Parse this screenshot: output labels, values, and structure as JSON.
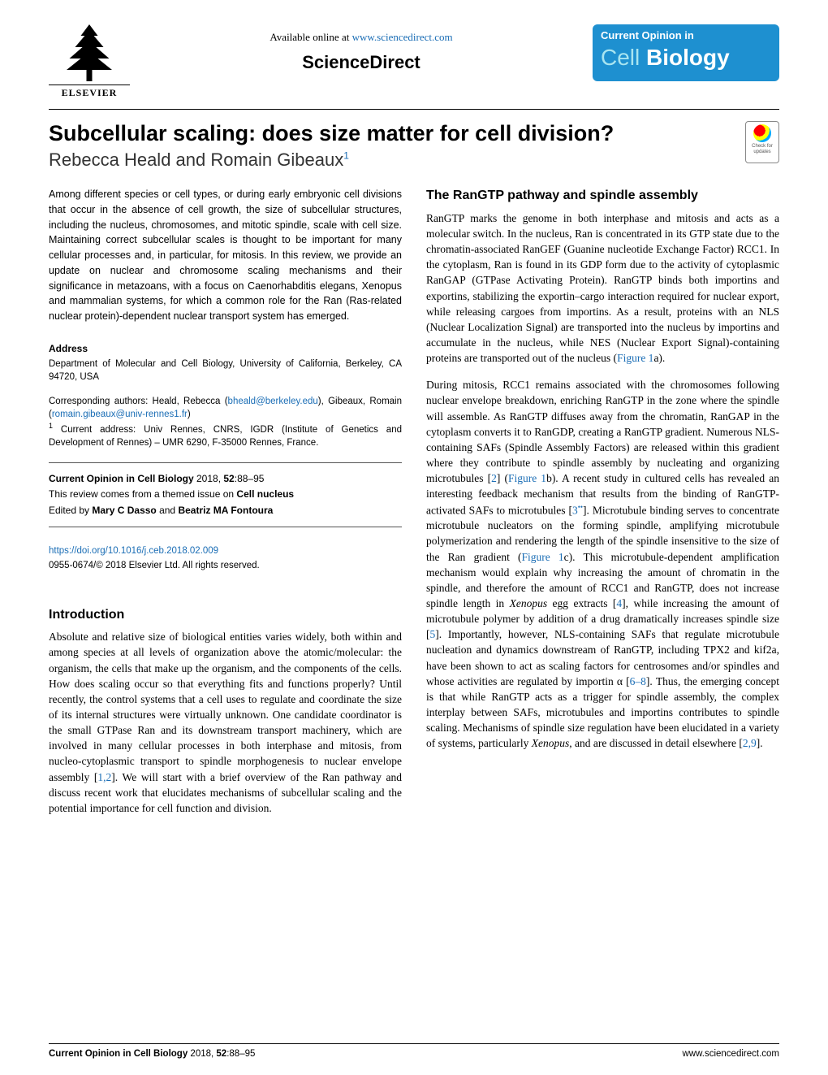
{
  "header": {
    "elsevier_label": "ELSEVIER",
    "available_online_prefix": "Available online at ",
    "available_online_url": "www.sciencedirect.com",
    "sciencedirect": "ScienceDirect",
    "journal_top": "Current Opinion in",
    "journal_cell": "Cell",
    "journal_biology": "Biology"
  },
  "title": "Subcellular scaling: does size matter for cell division?",
  "authors": "Rebecca Heald and Romain Gibeaux",
  "author_sup": "1",
  "crossmark": {
    "line1": "Check for",
    "line2": "updates"
  },
  "abstract": "Among different species or cell types, or during early embryonic cell divisions that occur in the absence of cell growth, the size of subcellular structures, including the nucleus, chromosomes, and mitotic spindle, scale with cell size. Maintaining correct subcellular scales is thought to be important for many cellular processes and, in particular, for mitosis. In this review, we provide an update on nuclear and chromosome scaling mechanisms and their significance in metazoans, with a focus on Caenorhabditis elegans, Xenopus and mammalian systems, for which a common role for the Ran (Ras-related nuclear protein)-dependent nuclear transport system has emerged.",
  "address": {
    "head": "Address",
    "body": "Department of Molecular and Cell Biology, University of California, Berkeley, CA 94720, USA"
  },
  "corresponding": {
    "prefix": "Corresponding authors: Heald, Rebecca (",
    "email1": "bheald@berkeley.edu",
    "mid": "), Gibeaux, Romain (",
    "email2": "romain.gibeaux@univ-rennes1.fr",
    "suffix": ")",
    "note_sup": "1",
    "note": " Current address: Univ Rennes, CNRS, IGDR (Institute of Genetics and Development of Rennes) – UMR 6290, F-35000 Rennes, France."
  },
  "citebox": {
    "line1_bold": "Current Opinion in Cell Biology",
    "line1_rest": " 2018, ",
    "line1_vol": "52",
    "line1_pages": ":88–95",
    "line2_prefix": "This review comes from a themed issue on ",
    "line2_bold": "Cell nucleus",
    "line3_prefix": "Edited by ",
    "line3_ed1": "Mary C Dasso",
    "line3_and": " and ",
    "line3_ed2": "Beatriz MA Fontoura"
  },
  "doi": {
    "url": "https://doi.org/10.1016/j.ceb.2018.02.009",
    "copyright": "0955-0674/© 2018 Elsevier Ltd. All rights reserved."
  },
  "intro": {
    "head": "Introduction",
    "p1a": "Absolute and relative size of biological entities varies widely, both within and among species at all levels of organization above the atomic/molecular: the organism, the cells that make up the organism, and the components of the cells. How does scaling occur so that everything fits and functions properly? Until recently, the control systems that a cell uses to regulate and coordinate the size of its internal structures were virtually unknown. One candidate coordinator is the small GTPase Ran and its downstream transport machinery, which are involved in many cellular processes in both interphase and mitosis, from nucleo-cytoplasmic transport to spindle morphogenesis to nuclear envelope assembly [",
    "ref1": "1,2",
    "p1b": "]. We will start with a brief overview of the Ran pathway and discuss recent work that elucidates mechanisms of subcellular scaling and the potential importance for cell function and division."
  },
  "ran": {
    "head": "The RanGTP pathway and spindle assembly",
    "p1a": "RanGTP marks the genome in both interphase and mitosis and acts as a molecular switch. In the nucleus, Ran is concentrated in its GTP state due to the chromatin-associated RanGEF (Guanine nucleotide Exchange Factor) RCC1. In the cytoplasm, Ran is found in its GDP form due to the activity of cytoplasmic RanGAP (GTPase Activating Protein). RanGTP binds both importins and exportins, stabilizing the exportin–cargo interaction required for nuclear export, while releasing cargoes from importins. As a result, proteins with an NLS (Nuclear Localization Signal) are transported into the nucleus by importins and accumulate in the nucleus, while NES (Nuclear Export Signal)-containing proteins are transported out of the nucleus (",
    "fig1a": "Figure 1",
    "p1b": "a).",
    "p2a": "During mitosis, RCC1 remains associated with the chromosomes following nuclear envelope breakdown, enriching RanGTP in the zone where the spindle will assemble. As RanGTP diffuses away from the chromatin, RanGAP in the cytoplasm converts it to RanGDP, creating a RanGTP gradient. Numerous NLS-containing SAFs (Spindle Assembly Factors) are released within this gradient where they contribute to spindle assembly by nucleating and organizing microtubules [",
    "ref2": "2",
    "p2b": "] (",
    "fig1b": "Figure 1",
    "p2c": "b). A recent study in cultured cells has revealed an interesting feedback mechanism that results from the binding of RanGTP-activated SAFs to microtubules [",
    "ref3": "3",
    "ref3dots": "••",
    "p2d": "]. Microtubule binding serves to concentrate microtubule nucleators on the forming spindle, amplifying microtubule polymerization and rendering the length of the spindle insensitive to the size of the Ran gradient (",
    "fig1c": "Figure 1",
    "p2e": "c). This microtubule-dependent amplification mechanism would explain why increasing the amount of chromatin in the spindle, and therefore the amount of RCC1 and RanGTP, does not increase spindle length in ",
    "xenopus1": "Xenopus",
    "p2f": " egg extracts [",
    "ref4": "4",
    "p2g": "], while increasing the amount of microtubule polymer by addition of a drug dramatically increases spindle size [",
    "ref5": "5",
    "p2h": "]. Importantly, however, NLS-containing SAFs that regulate microtubule nucleation and dynamics downstream of RanGTP, including TPX2 and kif2a, have been shown to act as scaling factors for centrosomes and/or spindles and whose activities are regulated by importin α [",
    "ref68": "6–8",
    "p2i": "]. Thus, the emerging concept is that while RanGTP acts as a trigger for spindle assembly, the complex interplay between SAFs, microtubules and importins contributes to spindle scaling. Mechanisms of spindle size regulation have been elucidated in a variety of systems, particularly ",
    "xenopus2": "Xenopus",
    "p2j": ", and are discussed in detail elsewhere [",
    "ref29": "2,9",
    "p2k": "]."
  },
  "footer": {
    "left_bold": "Current Opinion in Cell Biology",
    "left_rest": " 2018, ",
    "left_vol": "52",
    "left_pages": ":88–95",
    "right": "www.sciencedirect.com"
  },
  "colors": {
    "link": "#1a6db5",
    "badge_bg": "#1e90d0",
    "badge_light": "#a8e4f0",
    "text": "#000000",
    "rule": "#000000"
  },
  "typography": {
    "body_font": "Georgia, Times New Roman, serif",
    "sans_font": "Arial, sans-serif",
    "title_size_pt": 27,
    "authors_size_pt": 22,
    "section_head_size_pt": 16,
    "body_size_pt": 13.5,
    "abstract_size_pt": 12.5,
    "small_size_pt": 11.5
  }
}
